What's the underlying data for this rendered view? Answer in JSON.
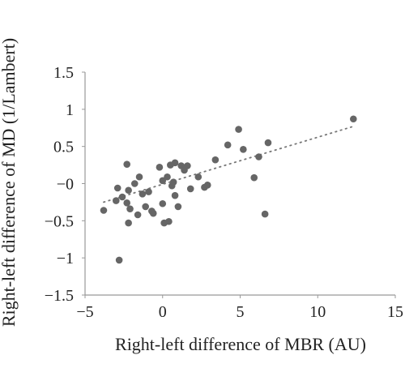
{
  "chart_data": {
    "type": "scatter",
    "title": "",
    "xlabel": "Right-left difference of MBR (AU)",
    "ylabel": "Right-left difference of MD (1/Lambert)",
    "xlim": [
      -5,
      15
    ],
    "ylim": [
      -1.5,
      1.5
    ],
    "x_ticks": [
      -5,
      0,
      5,
      10,
      15
    ],
    "x_tick_labels": [
      "−5",
      "0",
      "5",
      "10",
      "15"
    ],
    "y_ticks": [
      1.5,
      1,
      0.5,
      0,
      -0.5,
      -1,
      -1.5
    ],
    "y_tick_labels": [
      "1.5",
      "1",
      "0.5",
      "−0",
      "−0.5",
      "−1",
      "−1.5"
    ],
    "grid": false,
    "legend": "none",
    "colors": {
      "points": "#666666",
      "trendline": "#777777",
      "axis": "#999999",
      "text": "#222222"
    },
    "series": [
      {
        "points": [
          {
            "x": -3.8,
            "y": -0.36
          },
          {
            "x": -3.0,
            "y": -0.23
          },
          {
            "x": -2.9,
            "y": -0.06
          },
          {
            "x": -2.8,
            "y": -1.03
          },
          {
            "x": -2.6,
            "y": -0.18
          },
          {
            "x": -2.3,
            "y": 0.26
          },
          {
            "x": -2.3,
            "y": -0.26
          },
          {
            "x": -2.2,
            "y": -0.09
          },
          {
            "x": -2.2,
            "y": -0.53
          },
          {
            "x": -2.1,
            "y": -0.34
          },
          {
            "x": -1.8,
            "y": 0.0
          },
          {
            "x": -1.6,
            "y": -0.42
          },
          {
            "x": -1.5,
            "y": 0.09
          },
          {
            "x": -1.3,
            "y": -0.14
          },
          {
            "x": -1.1,
            "y": -0.31
          },
          {
            "x": -0.9,
            "y": -0.11
          },
          {
            "x": -0.7,
            "y": -0.37
          },
          {
            "x": -0.6,
            "y": -0.4
          },
          {
            "x": -0.2,
            "y": 0.22
          },
          {
            "x": 0.0,
            "y": -0.27
          },
          {
            "x": 0.0,
            "y": 0.04
          },
          {
            "x": 0.1,
            "y": -0.53
          },
          {
            "x": 0.3,
            "y": 0.09
          },
          {
            "x": 0.4,
            "y": -0.51
          },
          {
            "x": 0.5,
            "y": 0.25
          },
          {
            "x": 0.6,
            "y": -0.03
          },
          {
            "x": 0.7,
            "y": 0.02
          },
          {
            "x": 0.8,
            "y": 0.28
          },
          {
            "x": 0.8,
            "y": -0.16
          },
          {
            "x": 1.0,
            "y": -0.31
          },
          {
            "x": 1.2,
            "y": 0.24
          },
          {
            "x": 1.4,
            "y": 0.18
          },
          {
            "x": 1.6,
            "y": 0.24
          },
          {
            "x": 1.8,
            "y": -0.07
          },
          {
            "x": 2.3,
            "y": 0.09
          },
          {
            "x": 2.7,
            "y": -0.05
          },
          {
            "x": 2.9,
            "y": -0.02
          },
          {
            "x": 3.4,
            "y": 0.32
          },
          {
            "x": 4.2,
            "y": 0.52
          },
          {
            "x": 4.9,
            "y": 0.73
          },
          {
            "x": 5.2,
            "y": 0.46
          },
          {
            "x": 5.9,
            "y": 0.08
          },
          {
            "x": 6.2,
            "y": 0.36
          },
          {
            "x": 6.6,
            "y": -0.41
          },
          {
            "x": 6.8,
            "y": 0.55
          },
          {
            "x": 12.3,
            "y": 0.87
          }
        ]
      }
    ],
    "trendline": {
      "style": "dotted",
      "x_start": -3.8,
      "y_start": -0.25,
      "x_end": 12.3,
      "y_end": 0.77
    }
  }
}
